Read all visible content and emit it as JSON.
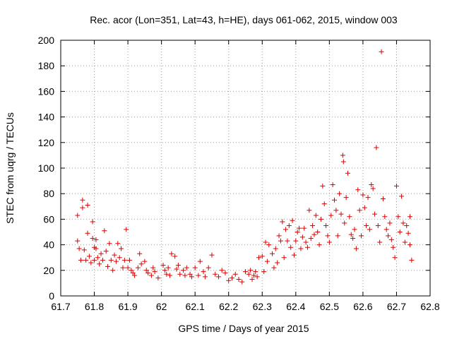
{
  "chart_data": {
    "type": "scatter",
    "title": "Rec. acor (Lon=351, Lat=43, h=HE), days 061-062, 2015, window 003",
    "xlabel": "GPS time / Days of year 2015",
    "ylabel": "STEC from uqrg / TECUs",
    "xlim": [
      61.7,
      62.8
    ],
    "ylim": [
      0,
      200
    ],
    "xticks": [
      "61.7",
      "61.8",
      "61.9",
      "62",
      "62.1",
      "62.2",
      "62.3",
      "62.4",
      "62.5",
      "62.6",
      "62.7",
      "62.8"
    ],
    "yticks": [
      "0",
      "20",
      "40",
      "60",
      "80",
      "100",
      "120",
      "140",
      "160",
      "180",
      "200"
    ],
    "grid": true,
    "marker": "plus",
    "color": "#dd0000",
    "points": [
      [
        61.75,
        63
      ],
      [
        61.75,
        43
      ],
      [
        61.755,
        37
      ],
      [
        61.76,
        28
      ],
      [
        61.765,
        75
      ],
      [
        61.765,
        69
      ],
      [
        61.77,
        36
      ],
      [
        61.775,
        28
      ],
      [
        61.78,
        71
      ],
      [
        61.78,
        49
      ],
      [
        61.785,
        31
      ],
      [
        61.79,
        26
      ],
      [
        61.795,
        58
      ],
      [
        61.795,
        45
      ],
      [
        61.8,
        38
      ],
      [
        61.8,
        28
      ],
      [
        61.805,
        44
      ],
      [
        61.805,
        37
      ],
      [
        61.81,
        30
      ],
      [
        61.815,
        25
      ],
      [
        61.82,
        33
      ],
      [
        61.825,
        28
      ],
      [
        61.83,
        51
      ],
      [
        61.835,
        35
      ],
      [
        61.84,
        23
      ],
      [
        61.845,
        41
      ],
      [
        61.85,
        28
      ],
      [
        61.855,
        20
      ],
      [
        61.86,
        32
      ],
      [
        61.865,
        27
      ],
      [
        61.87,
        41
      ],
      [
        61.875,
        30
      ],
      [
        61.88,
        37
      ],
      [
        61.885,
        22
      ],
      [
        61.89,
        28
      ],
      [
        61.895,
        52
      ],
      [
        61.9,
        22
      ],
      [
        61.905,
        28
      ],
      [
        61.91,
        20
      ],
      [
        61.915,
        18
      ],
      [
        61.92,
        16
      ],
      [
        61.93,
        22
      ],
      [
        61.935,
        33
      ],
      [
        61.94,
        25
      ],
      [
        61.95,
        27
      ],
      [
        61.955,
        20
      ],
      [
        61.96,
        18
      ],
      [
        61.97,
        16
      ],
      [
        61.975,
        22
      ],
      [
        61.98,
        19
      ],
      [
        61.99,
        14
      ],
      [
        62.005,
        24
      ],
      [
        62.01,
        20
      ],
      [
        62.015,
        17
      ],
      [
        62.02,
        22
      ],
      [
        62.025,
        16
      ],
      [
        62.03,
        33
      ],
      [
        62.04,
        31
      ],
      [
        62.045,
        21
      ],
      [
        62.05,
        24
      ],
      [
        62.055,
        17
      ],
      [
        62.065,
        20
      ],
      [
        62.07,
        16
      ],
      [
        62.075,
        22
      ],
      [
        62.085,
        17
      ],
      [
        62.09,
        15
      ],
      [
        62.1,
        22
      ],
      [
        62.11,
        16
      ],
      [
        62.115,
        27
      ],
      [
        62.125,
        19
      ],
      [
        62.13,
        15
      ],
      [
        62.14,
        22
      ],
      [
        62.15,
        32
      ],
      [
        62.16,
        17
      ],
      [
        62.17,
        15
      ],
      [
        62.18,
        20
      ],
      [
        62.19,
        18
      ],
      [
        62.2,
        12
      ],
      [
        62.21,
        14
      ],
      [
        62.22,
        17
      ],
      [
        62.23,
        13
      ],
      [
        62.24,
        11
      ],
      [
        62.25,
        19
      ],
      [
        62.26,
        17
      ],
      [
        62.265,
        20
      ],
      [
        62.27,
        13
      ],
      [
        62.275,
        16
      ],
      [
        62.28,
        19
      ],
      [
        62.285,
        15
      ],
      [
        62.29,
        30
      ],
      [
        62.3,
        31
      ],
      [
        62.305,
        19
      ],
      [
        62.31,
        42
      ],
      [
        62.315,
        27
      ],
      [
        62.32,
        40
      ],
      [
        62.33,
        33
      ],
      [
        62.335,
        22
      ],
      [
        62.34,
        37
      ],
      [
        62.345,
        26
      ],
      [
        62.35,
        47
      ],
      [
        62.355,
        43
      ],
      [
        62.36,
        58
      ],
      [
        62.365,
        30
      ],
      [
        62.37,
        52
      ],
      [
        62.375,
        43
      ],
      [
        62.38,
        55
      ],
      [
        62.385,
        38
      ],
      [
        62.39,
        59
      ],
      [
        62.395,
        32
      ],
      [
        62.4,
        43
      ],
      [
        62.405,
        50
      ],
      [
        62.41,
        53
      ],
      [
        62.415,
        37
      ],
      [
        62.42,
        46
      ],
      [
        62.425,
        53
      ],
      [
        62.43,
        42
      ],
      [
        62.435,
        38
      ],
      [
        62.44,
        67
      ],
      [
        62.445,
        45
      ],
      [
        62.45,
        55
      ],
      [
        62.455,
        48
      ],
      [
        62.46,
        63
      ],
      [
        62.465,
        50
      ],
      [
        62.47,
        40
      ],
      [
        62.475,
        60
      ],
      [
        62.48,
        86
      ],
      [
        62.485,
        72
      ],
      [
        62.49,
        55
      ],
      [
        62.495,
        47
      ],
      [
        62.5,
        42
      ],
      [
        62.505,
        63
      ],
      [
        62.51,
        87
      ],
      [
        62.515,
        75
      ],
      [
        62.52,
        67
      ],
      [
        62.525,
        47
      ],
      [
        62.53,
        80
      ],
      [
        62.535,
        64
      ],
      [
        62.54,
        110
      ],
      [
        62.542,
        105
      ],
      [
        62.545,
        57
      ],
      [
        62.55,
        77
      ],
      [
        62.555,
        96
      ],
      [
        62.56,
        62
      ],
      [
        62.565,
        48
      ],
      [
        62.57,
        45
      ],
      [
        62.575,
        52
      ],
      [
        62.58,
        37
      ],
      [
        62.585,
        83
      ],
      [
        62.59,
        67
      ],
      [
        62.595,
        47
      ],
      [
        62.6,
        79
      ],
      [
        62.605,
        69
      ],
      [
        62.61,
        55
      ],
      [
        62.615,
        77
      ],
      [
        62.62,
        52
      ],
      [
        62.625,
        87
      ],
      [
        62.63,
        84
      ],
      [
        62.635,
        64
      ],
      [
        62.64,
        116
      ],
      [
        62.645,
        55
      ],
      [
        62.65,
        42
      ],
      [
        62.655,
        191
      ],
      [
        62.66,
        76
      ],
      [
        62.665,
        62
      ],
      [
        62.67,
        52
      ],
      [
        62.675,
        47
      ],
      [
        62.68,
        57
      ],
      [
        62.685,
        44
      ],
      [
        62.69,
        38
      ],
      [
        62.695,
        30
      ],
      [
        62.7,
        86
      ],
      [
        62.705,
        62
      ],
      [
        62.71,
        50
      ],
      [
        62.715,
        78
      ],
      [
        62.72,
        57
      ],
      [
        62.725,
        42
      ],
      [
        62.73,
        55
      ],
      [
        62.735,
        49
      ],
      [
        62.74,
        62
      ],
      [
        62.74,
        40
      ],
      [
        62.745,
        28
      ]
    ]
  }
}
